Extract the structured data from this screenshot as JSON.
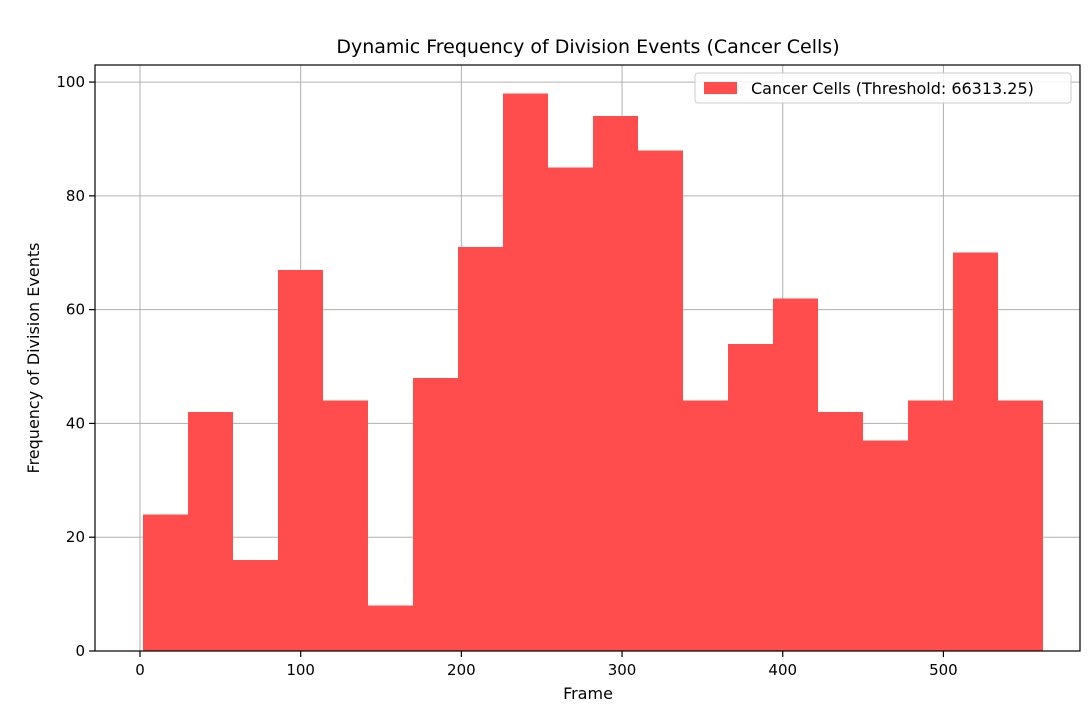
{
  "chart_data": {
    "type": "bar",
    "title": "Dynamic Frequency of Division Events (Cancer Cells)",
    "xlabel": "Frame",
    "ylabel": "Frequency of Division Events",
    "xlim": [
      -28,
      585
    ],
    "ylim": [
      0,
      103
    ],
    "x_ticks": [
      0,
      100,
      200,
      300,
      400,
      500
    ],
    "y_ticks": [
      0,
      20,
      40,
      60,
      80,
      100
    ],
    "grid": true,
    "legend_position": "top-right",
    "bin_edges": [
      2,
      30,
      58,
      86,
      114,
      142,
      170,
      198,
      226,
      254,
      282,
      310,
      338,
      366,
      394,
      422,
      450,
      478,
      506,
      534,
      562
    ],
    "series": [
      {
        "name": "Cancer Cells (Threshold: 66313.25)",
        "color": "#ff4c4c",
        "values": [
          24,
          42,
          16,
          67,
          44,
          8,
          48,
          71,
          98,
          85,
          94,
          88,
          44,
          54,
          62,
          42,
          37,
          44,
          70,
          44
        ]
      }
    ]
  }
}
